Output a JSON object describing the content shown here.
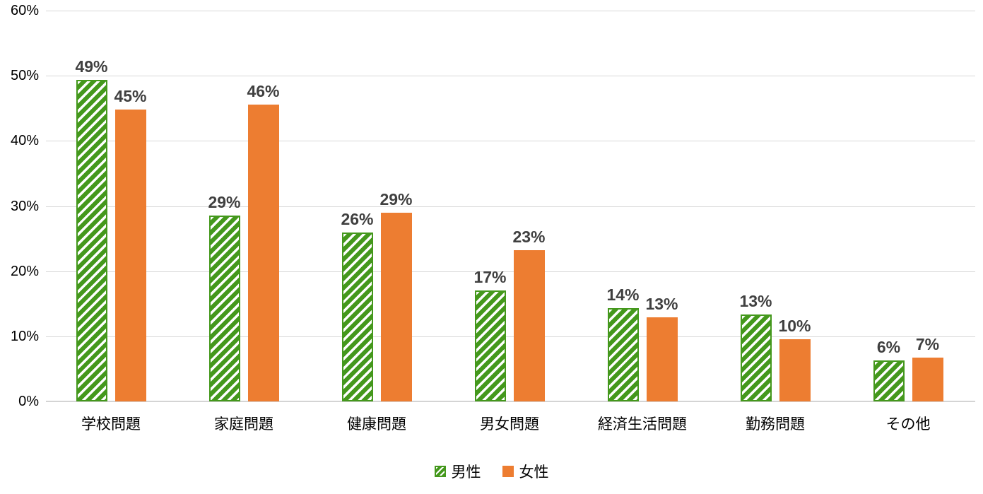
{
  "chart_data": {
    "type": "bar",
    "title": "",
    "xlabel": "",
    "ylabel": "",
    "categories": [
      "学校問題",
      "家庭問題",
      "健康問題",
      "男女問題",
      "経済生活問題",
      "勤務問題",
      "その他"
    ],
    "series": [
      {
        "name": "男性",
        "style": "hatched",
        "color": "#44981C",
        "values": [
          49,
          29,
          26,
          17,
          14,
          13,
          6
        ],
        "labels": [
          "49%",
          "29%",
          "26%",
          "17%",
          "14%",
          "13%",
          "6%"
        ],
        "precise": [
          49.4,
          28.5,
          25.9,
          17.0,
          14.3,
          13.4,
          6.3
        ]
      },
      {
        "name": "女性",
        "style": "solid",
        "color": "#ED7D31",
        "values": [
          45,
          46,
          29,
          23,
          13,
          10,
          7
        ],
        "labels": [
          "45%",
          "46%",
          "29%",
          "23%",
          "13%",
          "10%",
          "7%"
        ],
        "precise": [
          44.8,
          45.6,
          29.0,
          23.2,
          12.9,
          9.5,
          6.7
        ]
      }
    ],
    "ylim": [
      0,
      60
    ],
    "y_tick_step": 10,
    "y_ticks": [
      "0%",
      "10%",
      "20%",
      "30%",
      "40%",
      "50%",
      "60%"
    ],
    "grid": true,
    "legend_position": "bottom-center"
  },
  "colors": {
    "male_green": "#44981C",
    "female_orange": "#ED7D31",
    "gridline": "#d9d9d9",
    "value_label": "#404040",
    "axis_text": "#000000",
    "background": "#ffffff"
  }
}
